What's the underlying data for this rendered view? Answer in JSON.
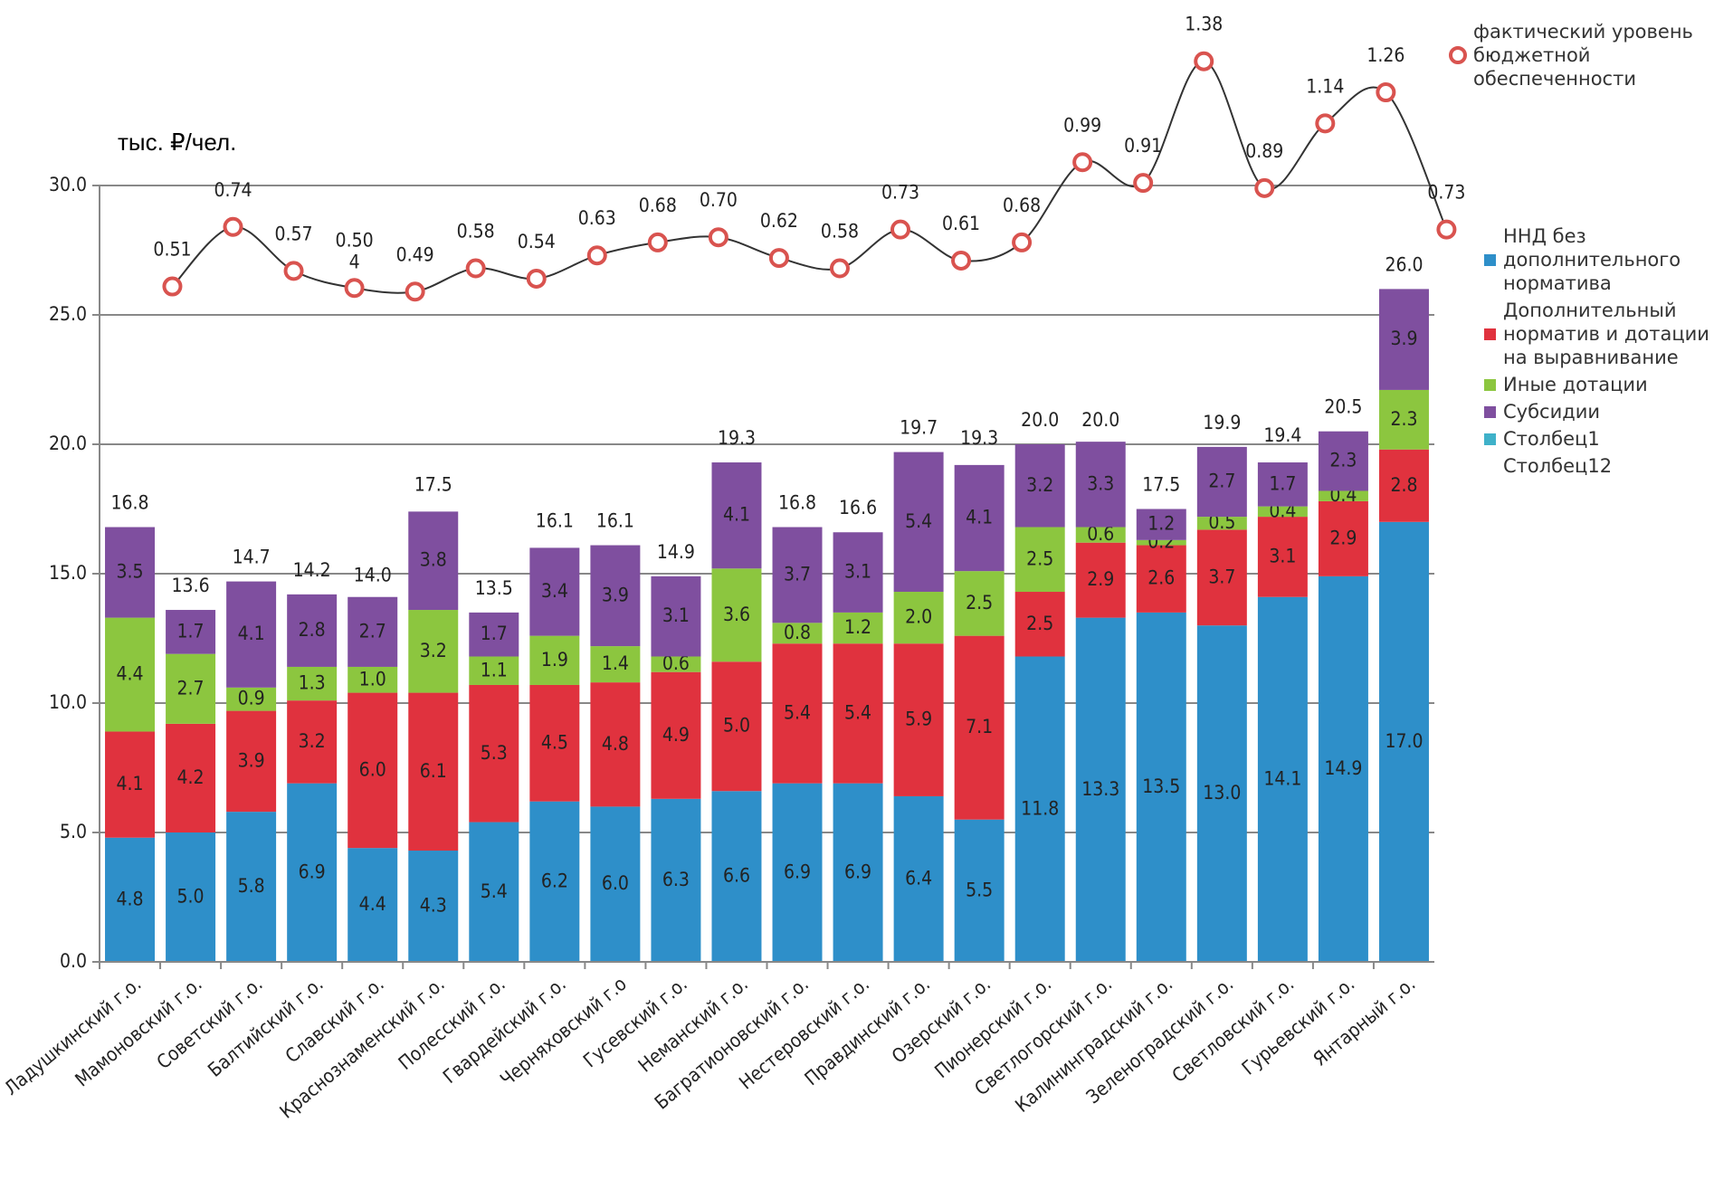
{
  "chart_data": {
    "type": "stacked_bar_line",
    "y_unit_label": "тыс. ₽/чел.",
    "categories": [
      "Ладушкинский г.о.",
      "Мамоновский г.о.",
      "Советский г.о.",
      "Балтийский г.о.",
      "Славский г.о.",
      "Краснознаменский г.о.",
      "Полесский г.о.",
      "Гвардейский г.о.",
      "Черняховский г.о",
      "Гусевский г.о.",
      "Неманский г.о.",
      "Багратионовский г.о.",
      "Нестеровский г.о.",
      "Правдинский г.о.",
      "Озерский г.о.",
      "Пионерский г.о.",
      "Светлогорский г.о.",
      "Калининградский г.о.",
      "Зеленоградский г.о.",
      "Светловский г.о.",
      "Гурьевский г.о.",
      "Янтарный г.о."
    ],
    "ylim": [
      0,
      30
    ],
    "yticks": [
      {
        "value": 0,
        "label": "0.0"
      },
      {
        "value": 5,
        "label": "5.0"
      },
      {
        "value": 10,
        "label": "10.0"
      },
      {
        "value": 15,
        "label": "15.0"
      },
      {
        "value": 20,
        "label": "20.0"
      },
      {
        "value": 25,
        "label": "25.0"
      },
      {
        "value": 30,
        "label": "30.0"
      }
    ],
    "y2lim": [
      -2.1,
      0.9
    ],
    "grid": true,
    "series": [
      {
        "name": "ННД без дополнительного норматива",
        "color": "#2e8fc9",
        "values": [
          4.8,
          5.0,
          5.8,
          6.9,
          4.4,
          4.3,
          5.4,
          6.2,
          6.0,
          6.3,
          6.6,
          6.9,
          6.9,
          6.4,
          5.5,
          11.8,
          13.3,
          13.5,
          13.0,
          14.1,
          14.9,
          17.0
        ],
        "value_labels": [
          "4.8",
          "5.0",
          "5.8",
          "6.9",
          "4.4",
          "4.3",
          "5.4",
          "6.2",
          "6.0",
          "6.3",
          "6.6",
          "6.9",
          "6.9",
          "6.4",
          "5.5",
          "11.8",
          "13.3",
          "13.5",
          "13.0",
          "14.1",
          "14.9",
          "17.0"
        ]
      },
      {
        "name": "Дополнительный норматив и дотации на выравнивание",
        "color": "#e0323e",
        "values": [
          4.1,
          4.2,
          3.9,
          3.2,
          6.0,
          6.1,
          5.3,
          4.5,
          4.8,
          4.9,
          5.0,
          5.4,
          5.4,
          5.9,
          7.1,
          2.5,
          2.9,
          2.6,
          3.7,
          3.1,
          2.9,
          2.8
        ],
        "value_labels": [
          "4.1",
          "4.2",
          "3.9",
          "3.2",
          "6.0",
          "6.1",
          "5.3",
          "4.5",
          "4.8",
          "4.9",
          "5.0",
          "5.4",
          "5.4",
          "5.9",
          "7.1",
          "2.5",
          "2.9",
          "2.6",
          "3.7",
          "3.1",
          "2.9",
          "2.8"
        ]
      },
      {
        "name": "Иные дотации",
        "color": "#8cc63f",
        "values": [
          4.4,
          2.7,
          0.9,
          1.3,
          1.0,
          3.2,
          1.1,
          1.9,
          1.4,
          0.6,
          3.6,
          0.8,
          1.2,
          2.0,
          2.5,
          2.5,
          0.6,
          0.2,
          0.5,
          0.4,
          0.4,
          2.3
        ],
        "value_labels": [
          "4.4",
          "2.7",
          "0.9",
          "1.3",
          "1.0",
          "3.2",
          "1.1",
          "1.9",
          "1.4",
          "0.6",
          "3.6",
          "0.8",
          "1.2",
          "2.0",
          "2.5",
          "2.5",
          "0.6",
          "0.2",
          "0.5",
          "0.4",
          "0.4",
          "2.3"
        ]
      },
      {
        "name": "Субсидии",
        "color": "#7f4f9f",
        "values": [
          3.5,
          1.7,
          4.1,
          2.8,
          2.7,
          3.8,
          1.7,
          3.4,
          3.9,
          3.1,
          4.1,
          3.7,
          3.1,
          5.4,
          4.1,
          3.2,
          3.3,
          1.2,
          2.7,
          1.7,
          2.3,
          3.9
        ],
        "value_labels": [
          "3.5",
          "1.7",
          "4.1",
          "2.8",
          "2.7",
          "3.8",
          "1.7",
          "3.4",
          "3.9",
          "3.1",
          "4.1",
          "3.7",
          "3.1",
          "5.4",
          "4.1",
          "3.2",
          "3.3",
          "1.2",
          "2.7",
          "1.7",
          "2.3",
          "3.9"
        ]
      },
      {
        "name": "Столбец1",
        "color": "#3fb1c9",
        "values": [
          null,
          null,
          null,
          null,
          null,
          null,
          null,
          null,
          null,
          null,
          null,
          null,
          null,
          null,
          null,
          null,
          null,
          null,
          null,
          null,
          null,
          null
        ]
      },
      {
        "name": "Столбец12",
        "values": [
          null,
          null,
          null,
          null,
          null,
          null,
          null,
          null,
          null,
          null,
          null,
          null,
          null,
          null,
          null,
          null,
          null,
          null,
          null,
          null,
          null,
          null
        ]
      }
    ],
    "totals": [
      16.8,
      13.6,
      14.7,
      14.2,
      14.0,
      17.5,
      13.5,
      16.1,
      16.1,
      14.9,
      19.3,
      16.8,
      16.6,
      19.7,
      19.3,
      20.0,
      20.0,
      17.5,
      19.9,
      19.4,
      20.5,
      26.0
    ],
    "total_labels": [
      "16.8",
      "13.6",
      "14.7",
      "14.2",
      "14.0",
      "17.5",
      "13.5",
      "16.1",
      "16.1",
      "14.9",
      "19.3",
      "16.8",
      "16.6",
      "19.7",
      "19.3",
      "20.0",
      "20.0",
      "17.5",
      "19.9",
      "19.4",
      "20.5",
      "26.0"
    ],
    "line": {
      "name": "фактический уровень бюджетной обеспеченности",
      "axis": "y2",
      "color": "#333333",
      "marker_color": "#d9534f",
      "values": [
        0.51,
        0.74,
        0.57,
        0.504,
        0.49,
        0.58,
        0.54,
        0.63,
        0.68,
        0.7,
        0.62,
        0.58,
        0.73,
        0.61,
        0.68,
        0.99,
        0.91,
        1.38,
        0.89,
        1.14,
        1.26,
        0.73
      ],
      "value_labels": [
        "0.51",
        "0.74",
        "0.57",
        "0.50\n4",
        "0.49",
        "0.58",
        "0.54",
        "0.63",
        "0.68",
        "0.70",
        "0.62",
        "0.58",
        "0.73",
        "0.61",
        "0.68",
        "0.99",
        "0.91",
        "1.38",
        "0.89",
        "1.14",
        "1.26",
        "0.73"
      ]
    }
  }
}
